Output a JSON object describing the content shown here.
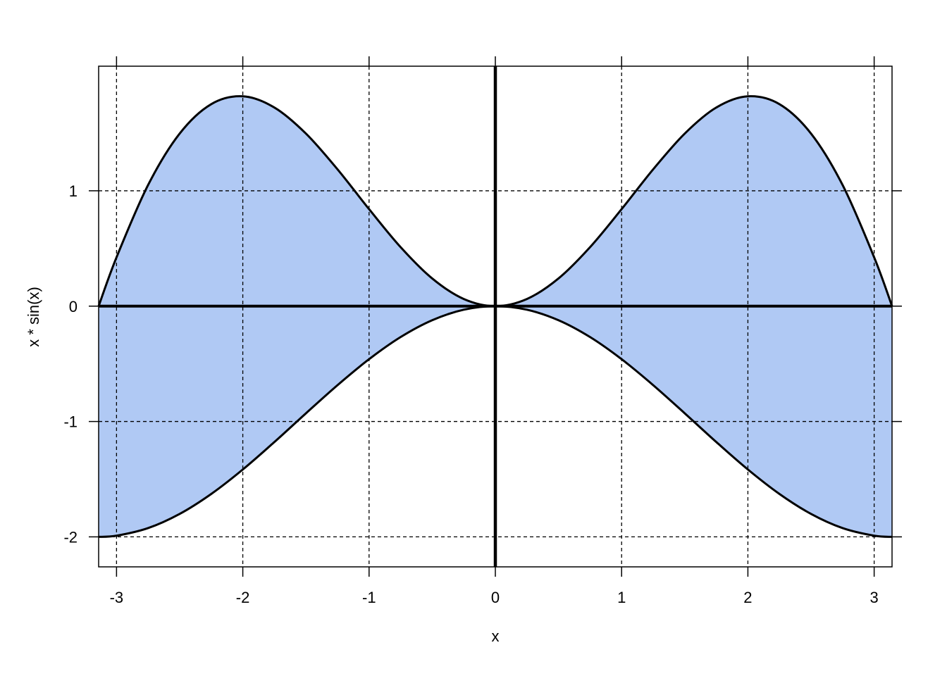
{
  "chart_data": {
    "type": "area",
    "title": "",
    "xlabel": "x",
    "ylabel": "x * sin(x)",
    "xlim": [
      -3.1416,
      3.1416
    ],
    "ylim": [
      -2.26,
      2.08
    ],
    "grid": true,
    "fill_color": "#B0C9F4",
    "line_color": "#000000",
    "x_ticks": [
      -3,
      -2,
      -1,
      0,
      1,
      2,
      3
    ],
    "x_tick_labels": [
      "-3",
      "-2",
      "-1",
      "0",
      "1",
      "2",
      "3"
    ],
    "y_ticks": [
      -2,
      -1,
      0,
      1
    ],
    "y_tick_labels": [
      "-2",
      "-1",
      "0",
      "1"
    ],
    "reference_lines": {
      "x": 0,
      "y": 0
    },
    "x": [
      -3.1416,
      -3,
      -2.75,
      -2.5,
      -2.25,
      -2,
      -1.75,
      -1.5,
      -1.25,
      -1,
      -0.75,
      -0.5,
      -0.25,
      0,
      0.25,
      0.5,
      0.75,
      1,
      1.25,
      1.5,
      1.75,
      2,
      2.25,
      2.5,
      2.75,
      3,
      3.1416
    ],
    "series": [
      {
        "values": [
          0,
          0.423,
          1.05,
          1.496,
          1.751,
          1.819,
          1.722,
          1.496,
          1.186,
          0.841,
          0.511,
          0.24,
          0.062,
          0,
          0.062,
          0.24,
          0.511,
          0.841,
          1.186,
          1.496,
          1.722,
          1.819,
          1.751,
          1.496,
          1.05,
          0.423,
          0
        ]
      },
      {
        "values": [
          -2,
          -1.99,
          -1.924,
          -1.801,
          -1.628,
          -1.416,
          -1.178,
          -0.929,
          -0.685,
          -0.46,
          -0.268,
          -0.122,
          -0.031,
          0,
          -0.031,
          -0.122,
          -0.268,
          -0.46,
          -0.685,
          -0.929,
          -1.178,
          -1.416,
          -1.628,
          -1.801,
          -1.924,
          -1.99,
          -2
        ]
      }
    ]
  }
}
